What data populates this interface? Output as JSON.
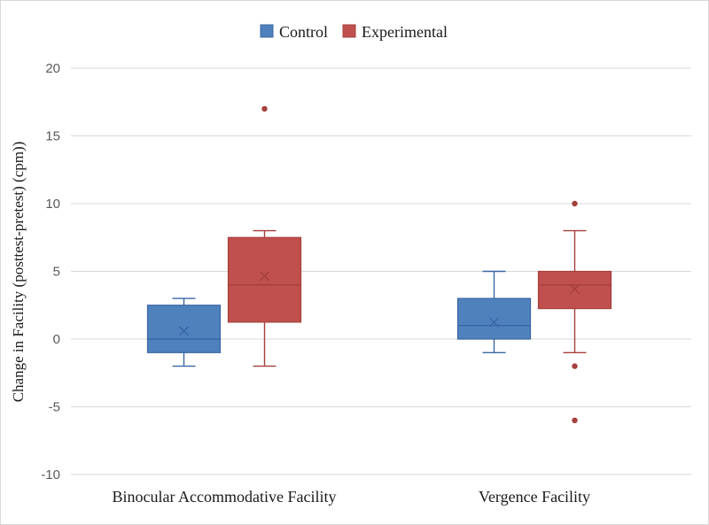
{
  "chart_data": {
    "type": "box",
    "title": "",
    "xlabel": "",
    "ylabel": "Change in Facility (posttest-pretest) (cpm))",
    "ylim": [
      -10,
      20
    ],
    "yticks": [
      -10,
      -5,
      0,
      5,
      10,
      15,
      20
    ],
    "grid": true,
    "legend_position": "top-center",
    "categories": [
      "Binocular Accommodative Facility",
      "Vergence Facility"
    ],
    "series": [
      {
        "name": "Control",
        "color": "#4f81bd",
        "edge_color": "#3a66a3",
        "boxes": [
          {
            "min": -2,
            "q1": -1,
            "median": 0,
            "q3": 2.5,
            "max": 3,
            "mean": 0.6,
            "outliers": []
          },
          {
            "min": -1,
            "q1": 0,
            "median": 1,
            "q3": 3,
            "max": 5,
            "mean": 1.25,
            "outliers": []
          }
        ]
      },
      {
        "name": "Experimental",
        "color": "#c0504d",
        "edge_color": "#a53f3c",
        "boxes": [
          {
            "min": -2,
            "q1": 1.25,
            "median": 4,
            "q3": 7.5,
            "max": 8,
            "mean": 4.65,
            "outliers": [
              17
            ]
          },
          {
            "min": -1,
            "q1": 2.25,
            "median": 4,
            "q3": 5,
            "max": 8,
            "mean": 3.7,
            "outliers": [
              10,
              -2,
              -6
            ]
          }
        ]
      }
    ]
  }
}
